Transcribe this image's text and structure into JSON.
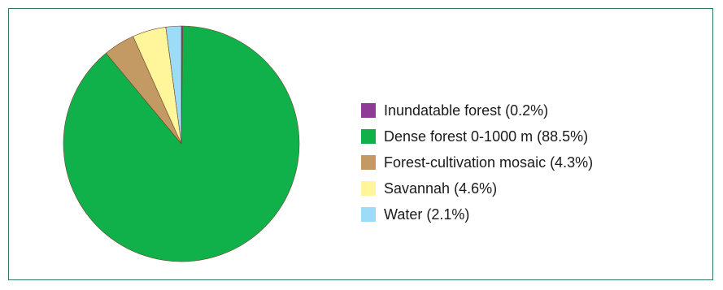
{
  "chart_data": {
    "type": "pie",
    "title": "",
    "slices": [
      {
        "label": "Inundatable forest",
        "value": 0.2,
        "color": "#8e3a96",
        "legend_text": "Inundatable forest (0.2%)"
      },
      {
        "label": "Dense forest 0-1000 m",
        "value": 88.5,
        "color": "#10b14b",
        "legend_text": "Dense forest 0-1000 m (88.5%)"
      },
      {
        "label": "Forest-cultivation mosaic",
        "value": 4.3,
        "color": "#c49a64",
        "legend_text": "Forest-cultivation mosaic (4.3%)"
      },
      {
        "label": "Savannah",
        "value": 4.6,
        "color": "#fff59a",
        "legend_text": "Savannah (4.6%)"
      },
      {
        "label": "Water",
        "value": 2.1,
        "color": "#9ddcf7",
        "legend_text": "Water (2.1%)"
      }
    ],
    "start_angle": "12 o'clock",
    "direction": "clockwise",
    "legend_position": "right",
    "border_color": "#2e7a5a"
  }
}
